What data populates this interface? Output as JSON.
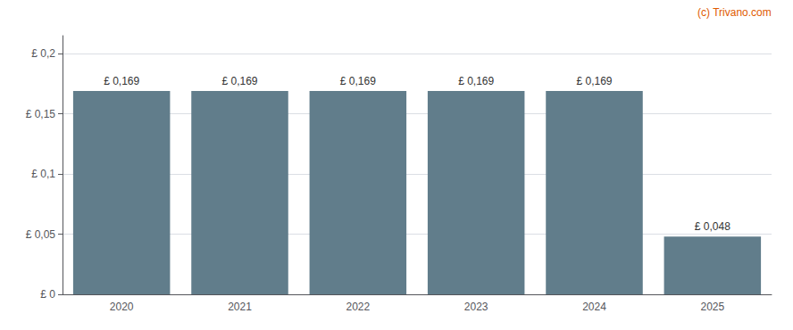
{
  "chart_data": {
    "type": "bar",
    "categories": [
      "2020",
      "2021",
      "2022",
      "2023",
      "2024",
      "2025"
    ],
    "values": [
      0.169,
      0.169,
      0.169,
      0.169,
      0.169,
      0.048
    ],
    "value_labels": [
      "£ 0,169",
      "£ 0,169",
      "£ 0,169",
      "£ 0,169",
      "£ 0,169",
      "£ 0,048"
    ],
    "data_labels": true,
    "color": "#617d8b",
    "ylim": [
      0,
      0.215
    ],
    "yticks": [
      {
        "value": 0,
        "label": "£ 0"
      },
      {
        "value": 0.05,
        "label": "£ 0,05"
      },
      {
        "value": 0.1,
        "label": "£ 0,1"
      },
      {
        "value": 0.15,
        "label": "£ 0,15"
      },
      {
        "value": 0.2,
        "label": "£ 0,2"
      }
    ],
    "grid": true,
    "annotations": [
      {
        "text": "(c) Trivano.com",
        "color": "#e05a00"
      }
    ]
  }
}
